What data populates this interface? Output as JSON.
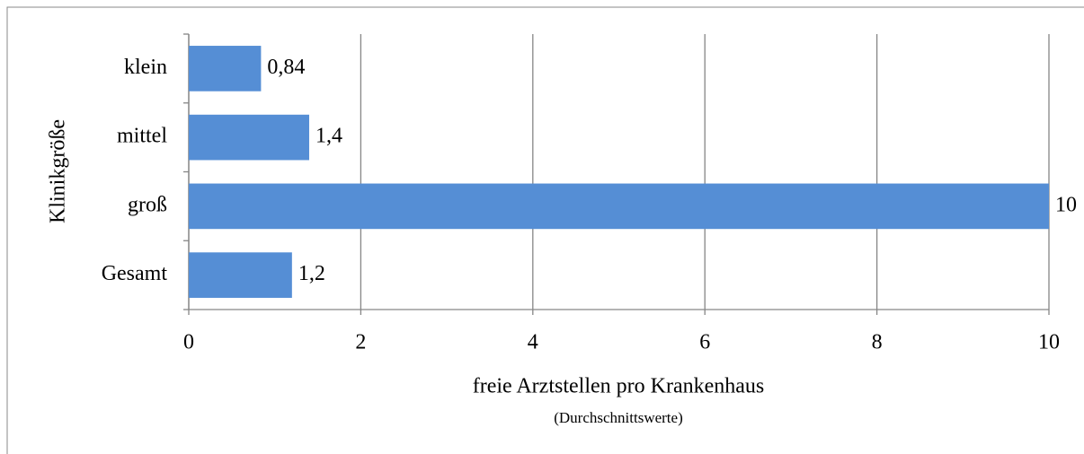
{
  "chart_data": {
    "type": "barh",
    "categories": [
      "klein",
      "mittel",
      "groß",
      "Gesamt"
    ],
    "values": [
      0.84,
      1.4,
      10,
      1.2
    ],
    "value_labels": [
      "0,84",
      "1,4",
      "10",
      "1,2"
    ],
    "color": "#558ed5",
    "xlim": [
      0,
      10
    ],
    "xticks": [
      0,
      2,
      4,
      6,
      8,
      10
    ],
    "grid": true,
    "xlabel": "freie Arztstellen pro Krankenhaus",
    "xlabel_note": "(Durchschnittswerte)",
    "ylabel": "Klinikgröße"
  }
}
